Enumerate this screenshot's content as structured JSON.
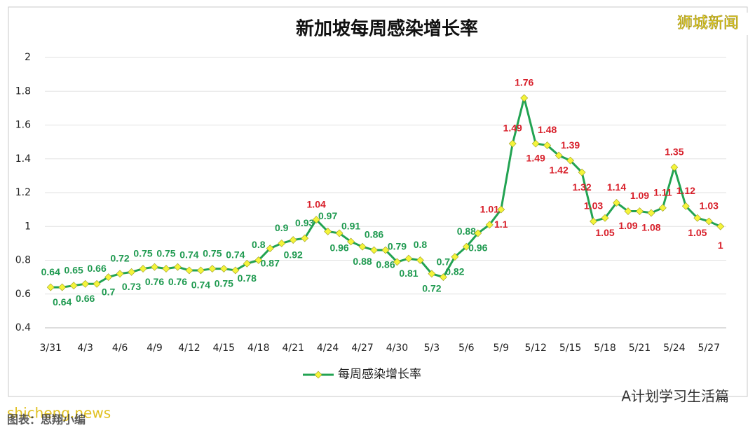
{
  "chart_data": {
    "type": "line",
    "title": "新加坡每周感染增长率",
    "categories": [
      "3/31",
      null,
      null,
      "4/3",
      null,
      null,
      "4/6",
      null,
      null,
      "4/9",
      null,
      null,
      "4/12",
      null,
      null,
      "4/15",
      null,
      null,
      "4/18",
      null,
      null,
      "4/21",
      null,
      null,
      "4/24",
      null,
      null,
      "4/27",
      null,
      null,
      "4/30",
      null,
      null,
      "5/3",
      null,
      null,
      "5/6",
      null,
      null,
      "5/9",
      null,
      null,
      "5/12",
      null,
      null,
      "5/15",
      null,
      null,
      "5/18",
      null,
      null,
      "5/21",
      null,
      null,
      "5/24",
      null,
      null,
      "5/27",
      null
    ],
    "series": [
      {
        "name": "每周感染增长率",
        "color": "#22a352",
        "marker_color": "#f4f43a",
        "values": [
          0.64,
          0.64,
          0.65,
          0.66,
          0.66,
          0.7,
          0.72,
          0.73,
          0.75,
          0.76,
          0.75,
          0.76,
          0.74,
          0.74,
          0.75,
          0.75,
          0.74,
          0.78,
          0.8,
          0.87,
          0.9,
          0.92,
          0.93,
          1.04,
          0.97,
          0.96,
          0.91,
          0.88,
          0.86,
          0.86,
          0.79,
          0.81,
          0.8,
          0.72,
          0.7,
          0.82,
          0.88,
          0.96,
          1.01,
          1.1,
          1.49,
          1.76,
          1.49,
          1.48,
          1.42,
          1.39,
          1.32,
          1.03,
          1.05,
          1.14,
          1.09,
          1.09,
          1.08,
          1.11,
          1.35,
          1.12,
          1.05,
          1.03,
          1
        ],
        "label_side": [
          "above",
          "below",
          "above",
          "below",
          "above",
          "below",
          "above",
          "below",
          "above",
          "below",
          "above",
          "below",
          "above",
          "below",
          "above",
          "below",
          "above",
          "below",
          "above",
          "below",
          "above",
          "below",
          "above",
          "above",
          "above",
          "below",
          "above",
          "below",
          "above",
          "below",
          "above",
          "below",
          "above",
          "below",
          "above",
          "below",
          "above",
          "below",
          "above",
          "below",
          "above",
          "above",
          "below",
          "above",
          "below",
          "above",
          "below",
          "above",
          "below",
          "above",
          "below",
          "above",
          "below",
          "above",
          "above",
          "above",
          "below",
          "above",
          "below"
        ]
      }
    ],
    "label_colors": {
      "low": "#1f9a50",
      "high": "#d81f2a"
    },
    "high_from": 1,
    "ylim": [
      0.4,
      2
    ],
    "yticks": [
      0.4,
      0.6,
      0.8,
      1,
      1.2,
      1.4,
      1.6,
      1.8,
      2
    ],
    "watermark": "狮城新闻",
    "source": "A计划学习生活篇",
    "site": "shicheng.news",
    "credit": "图表：思翔小编"
  }
}
